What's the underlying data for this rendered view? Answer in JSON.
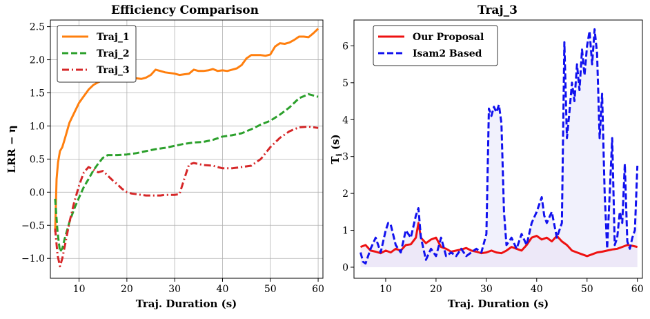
{
  "chart_data": [
    {
      "type": "line",
      "title": "Efficiency Comparison",
      "xlabel": "Traj. Duration (s)",
      "ylabel": "LRR − η",
      "xlim": [
        4,
        61
      ],
      "ylim": [
        -1.3,
        2.6
      ],
      "xticks": [
        10,
        20,
        30,
        40,
        50,
        60
      ],
      "xtick_labels": [
        "10",
        "20",
        "30",
        "40",
        "50",
        "60"
      ],
      "yticks": [
        -1.0,
        -0.5,
        0.0,
        0.5,
        1.0,
        1.5,
        2.0,
        2.5
      ],
      "ytick_labels": [
        "−1.0",
        "−0.5",
        "0.0",
        "0.5",
        "1.0",
        "1.5",
        "2.0",
        "2.5"
      ],
      "grid": true,
      "legend_position": "top-left",
      "series": [
        {
          "name": "Traj_1",
          "color": "#ff7f0e",
          "dash": "solid",
          "x": [
            5,
            5.3,
            5.6,
            6,
            6.5,
            7,
            8,
            9,
            10,
            11,
            12,
            13,
            14,
            15,
            16,
            17,
            18,
            19,
            20,
            21,
            22,
            23,
            24,
            25,
            26,
            27,
            28,
            29,
            30,
            31,
            32,
            33,
            34,
            35,
            36,
            37,
            38,
            39,
            40,
            41,
            42,
            43,
            44,
            45,
            46,
            47,
            48,
            49,
            50,
            51,
            52,
            53,
            54,
            55,
            56,
            57,
            58,
            59,
            60
          ],
          "y": [
            -0.6,
            0.2,
            0.45,
            0.62,
            0.68,
            0.8,
            1.05,
            1.2,
            1.35,
            1.45,
            1.55,
            1.62,
            1.66,
            1.69,
            1.7,
            1.71,
            1.71,
            1.71,
            1.69,
            1.69,
            1.72,
            1.71,
            1.73,
            1.77,
            1.85,
            1.83,
            1.81,
            1.8,
            1.79,
            1.77,
            1.78,
            1.79,
            1.85,
            1.83,
            1.83,
            1.84,
            1.86,
            1.83,
            1.84,
            1.83,
            1.85,
            1.87,
            1.92,
            2.02,
            2.07,
            2.07,
            2.07,
            2.06,
            2.08,
            2.2,
            2.25,
            2.24,
            2.26,
            2.3,
            2.35,
            2.35,
            2.34,
            2.4,
            2.47
          ]
        },
        {
          "name": "Traj_2",
          "color": "#2ca02c",
          "dash": "dashed",
          "x": [
            5,
            5.5,
            6,
            6.5,
            7,
            8,
            9,
            10,
            11,
            12,
            13,
            14,
            15,
            16,
            18,
            20,
            22,
            24,
            26,
            28,
            30,
            32,
            34,
            36,
            38,
            40,
            42,
            44,
            46,
            48,
            50,
            52,
            54,
            56,
            58,
            60
          ],
          "y": [
            -0.1,
            -0.6,
            -0.9,
            -0.85,
            -0.7,
            -0.45,
            -0.25,
            -0.08,
            0.08,
            0.2,
            0.33,
            0.43,
            0.52,
            0.56,
            0.56,
            0.57,
            0.59,
            0.62,
            0.65,
            0.67,
            0.7,
            0.73,
            0.75,
            0.76,
            0.79,
            0.84,
            0.86,
            0.89,
            0.95,
            1.02,
            1.08,
            1.17,
            1.28,
            1.42,
            1.48,
            1.44
          ]
        },
        {
          "name": "Traj_3",
          "color": "#d62728",
          "dash": "dashdot",
          "x": [
            5,
            5.5,
            6,
            6.5,
            7,
            8,
            9,
            10,
            11,
            12,
            13,
            14,
            15,
            16,
            17,
            18,
            19,
            20,
            21,
            22,
            23,
            24,
            25,
            26,
            27,
            28,
            29,
            30,
            31,
            32,
            33,
            34,
            36,
            38,
            40,
            42,
            44,
            46,
            48,
            50,
            52,
            54,
            56,
            58,
            60
          ],
          "y": [
            -0.55,
            -0.95,
            -1.12,
            -1.0,
            -0.82,
            -0.45,
            -0.15,
            0.1,
            0.3,
            0.38,
            0.34,
            0.3,
            0.32,
            0.25,
            0.18,
            0.12,
            0.05,
            0.0,
            -0.02,
            -0.03,
            -0.04,
            -0.05,
            -0.05,
            -0.05,
            -0.05,
            -0.04,
            -0.04,
            -0.04,
            -0.03,
            0.2,
            0.42,
            0.44,
            0.41,
            0.4,
            0.36,
            0.36,
            0.38,
            0.4,
            0.5,
            0.68,
            0.82,
            0.92,
            0.98,
            0.99,
            0.97
          ]
        }
      ]
    },
    {
      "type": "line",
      "title": "Traj_3",
      "xlabel": "Traj. Duration (s)",
      "ylabel": "T_i (s)",
      "xlim": [
        3.7,
        61
      ],
      "ylim": [
        -0.3,
        6.7
      ],
      "xticks": [
        10,
        20,
        30,
        40,
        50,
        60
      ],
      "xtick_labels": [
        "10",
        "20",
        "30",
        "40",
        "50",
        "60"
      ],
      "yticks": [
        0,
        1,
        2,
        3,
        4,
        5,
        6
      ],
      "ytick_labels": [
        "0",
        "1",
        "2",
        "3",
        "4",
        "5",
        "6"
      ],
      "grid": false,
      "legend_position": "top-left",
      "series": [
        {
          "name": "Our Proposal",
          "color": "#ee1111",
          "dash": "solid",
          "fill": "#f0dcf0",
          "x": [
            5,
            6,
            7,
            8,
            9,
            10,
            11,
            12,
            13,
            14,
            15,
            16,
            16.5,
            17,
            18,
            19,
            20,
            21,
            22,
            23,
            24,
            25,
            26,
            27,
            28,
            29,
            30,
            31,
            32,
            33,
            34,
            35,
            36,
            37,
            38,
            39,
            40,
            41,
            42,
            43,
            44,
            45,
            46,
            47,
            48,
            49,
            50,
            51,
            52,
            53,
            54,
            55,
            56,
            57,
            58,
            59,
            60
          ],
          "y": [
            0.55,
            0.6,
            0.45,
            0.42,
            0.38,
            0.45,
            0.4,
            0.5,
            0.45,
            0.6,
            0.62,
            0.8,
            1.2,
            0.8,
            0.65,
            0.75,
            0.8,
            0.55,
            0.5,
            0.42,
            0.45,
            0.48,
            0.52,
            0.45,
            0.42,
            0.38,
            0.4,
            0.45,
            0.4,
            0.38,
            0.45,
            0.55,
            0.5,
            0.45,
            0.6,
            0.8,
            0.85,
            0.75,
            0.8,
            0.7,
            0.85,
            0.7,
            0.6,
            0.45,
            0.4,
            0.35,
            0.3,
            0.35,
            0.4,
            0.42,
            0.45,
            0.48,
            0.5,
            0.55,
            0.6,
            0.58,
            0.55
          ]
        },
        {
          "name": "Isam2 Based",
          "color": "#1111ee",
          "dash": "dashed",
          "fill": "#e6e6fa",
          "x": [
            5,
            5.5,
            6,
            7,
            8,
            9,
            10,
            10.5,
            11,
            12,
            13,
            14,
            15,
            16,
            16.5,
            17,
            18,
            19,
            20,
            21,
            22,
            23,
            24,
            25,
            26,
            27,
            28,
            29,
            30,
            30.5,
            31,
            31.5,
            32,
            32.5,
            33,
            33.5,
            34,
            35,
            36,
            37,
            38,
            39,
            40,
            41,
            41.5,
            42,
            43,
            44,
            45,
            45.5,
            46,
            46.5,
            47,
            47.5,
            48,
            48.5,
            49,
            49.5,
            50,
            50.5,
            51,
            51.5,
            52,
            52.5,
            53,
            53.5,
            54,
            54.5,
            55,
            55.5,
            56,
            56.5,
            57,
            57.5,
            58,
            58.5,
            59,
            59.5,
            60
          ],
          "y": [
            0.4,
            0.15,
            0.1,
            0.5,
            0.8,
            0.4,
            1.0,
            1.2,
            1.15,
            0.6,
            0.4,
            1.0,
            0.8,
            1.4,
            1.6,
            0.8,
            0.2,
            0.5,
            0.3,
            0.8,
            0.3,
            0.4,
            0.3,
            0.5,
            0.3,
            0.4,
            0.5,
            0.4,
            0.9,
            4.3,
            4.1,
            4.35,
            4.2,
            4.4,
            3.9,
            1.5,
            0.6,
            0.8,
            0.5,
            0.9,
            0.6,
            1.2,
            1.5,
            1.9,
            1.4,
            1.2,
            1.5,
            0.8,
            1.2,
            6.1,
            3.5,
            4.2,
            5.0,
            4.5,
            5.5,
            4.8,
            5.9,
            5.2,
            6.0,
            6.4,
            5.5,
            6.45,
            5.8,
            3.5,
            4.7,
            2.0,
            0.5,
            2.0,
            3.5,
            0.6,
            0.8,
            1.5,
            1.2,
            2.8,
            0.7,
            0.5,
            0.8,
            1.0,
            2.75
          ]
        }
      ]
    }
  ]
}
